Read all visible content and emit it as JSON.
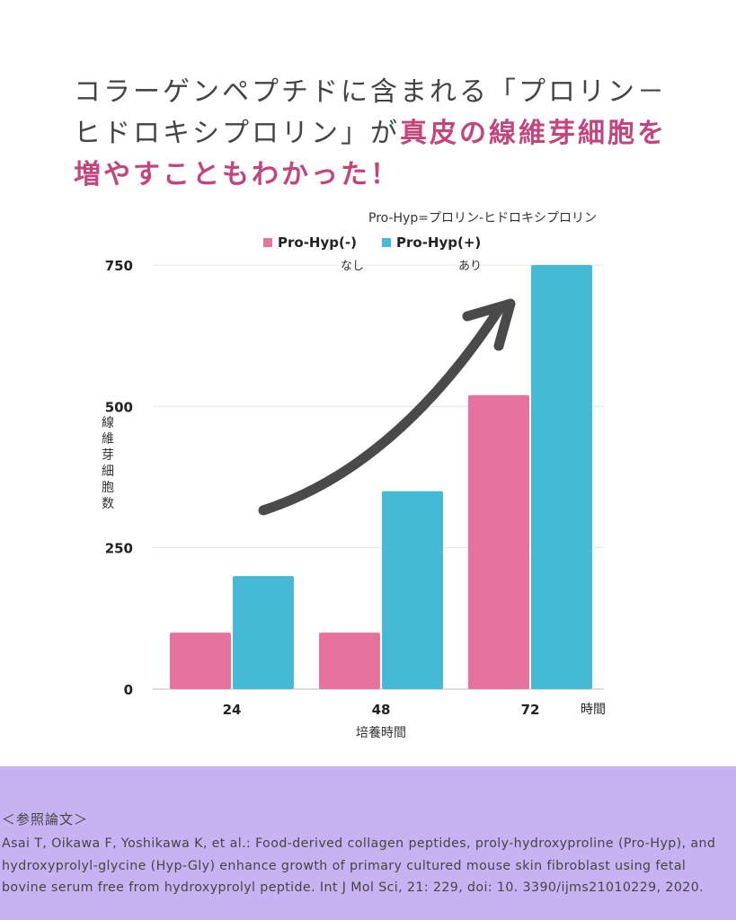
{
  "headline": {
    "line1": "コラーゲンペプチドに含まれる「プロリン－",
    "line2a": "ヒドロキシプロリン」が",
    "line2b": "真皮の線維芽細胞を",
    "line3": "増やすこともわかった！"
  },
  "colors": {
    "accent": "#c2467e",
    "series_minus": "#e8729e",
    "series_plus": "#44bad6",
    "arrow": "#4a4a4a",
    "footer_bg": "#c9b2f2"
  },
  "chart_data": {
    "type": "bar",
    "note": "Pro-Hyp=プロリン-ヒドロキシプロリン",
    "categories": [
      "24",
      "48",
      "72"
    ],
    "series": [
      {
        "name": "Pro-Hyp(-)",
        "sublabel": "なし",
        "values": [
          100,
          100,
          520
        ]
      },
      {
        "name": "Pro-Hyp(+)",
        "sublabel": "あり",
        "values": [
          200,
          350,
          750
        ]
      }
    ],
    "xlabel": "培養時間",
    "x_unit": "時間",
    "ylabel": "線維芽細胞数",
    "yticks": [
      0,
      250,
      500,
      750
    ],
    "ylim": [
      0,
      750
    ],
    "grid": true,
    "legend_position": "top-center"
  },
  "reference": {
    "heading": "＜参照論文＞",
    "text": "Asai T, Oikawa F, Yoshikawa K, et al.: Food-derived collagen peptides, proly-hydroxyproline (Pro-Hyp), and hydroxyprolyl-glycine (Hyp-Gly) enhance growth of primary cultured mouse skin fibroblast using fetal bovine serum free from hydroxyprolyl peptide. Int J Mol Sci, 21: 229, doi: 10. 3390/ijms21010229, 2020."
  }
}
